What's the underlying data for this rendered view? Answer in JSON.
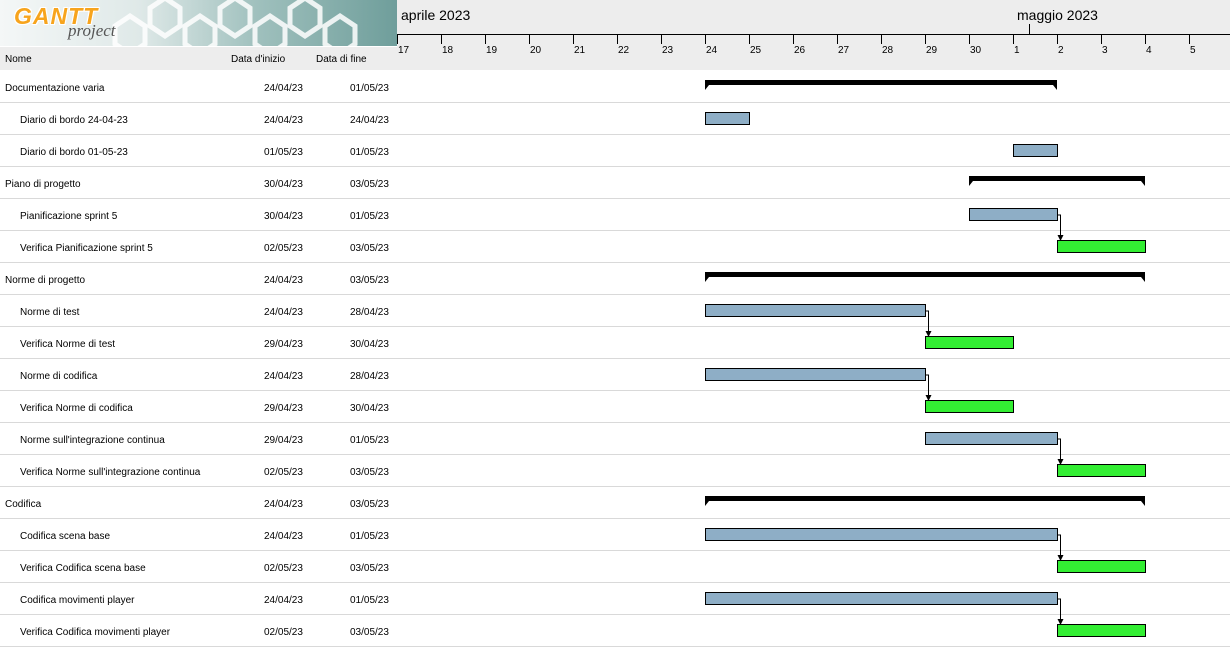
{
  "app": {
    "logo_text_main": "GANTT",
    "logo_text_sub": "project"
  },
  "table": {
    "col_name": "Nome",
    "col_start": "Data d'inizio",
    "col_end": "Data di fine",
    "rows": [
      {
        "name": "Documentazione varia",
        "start": "24/04/23",
        "end": "01/05/23",
        "level": 0
      },
      {
        "name": "Diario di bordo 24-04-23",
        "start": "24/04/23",
        "end": "24/04/23",
        "level": 1
      },
      {
        "name": "Diario di bordo 01-05-23",
        "start": "01/05/23",
        "end": "01/05/23",
        "level": 1
      },
      {
        "name": "Piano di progetto",
        "start": "30/04/23",
        "end": "03/05/23",
        "level": 0
      },
      {
        "name": "Pianificazione sprint 5",
        "start": "30/04/23",
        "end": "01/05/23",
        "level": 1
      },
      {
        "name": "Verifica Pianificazione sprint 5",
        "start": "02/05/23",
        "end": "03/05/23",
        "level": 1
      },
      {
        "name": "Norme di progetto",
        "start": "24/04/23",
        "end": "03/05/23",
        "level": 0
      },
      {
        "name": "Norme di test",
        "start": "24/04/23",
        "end": "28/04/23",
        "level": 1
      },
      {
        "name": "Verifica Norme di test",
        "start": "29/04/23",
        "end": "30/04/23",
        "level": 1
      },
      {
        "name": "Norme di codifica",
        "start": "24/04/23",
        "end": "28/04/23",
        "level": 1
      },
      {
        "name": "Verifica Norme di codifica",
        "start": "29/04/23",
        "end": "30/04/23",
        "level": 1
      },
      {
        "name": "Norme sull'integrazione continua",
        "start": "29/04/23",
        "end": "01/05/23",
        "level": 1
      },
      {
        "name": "Verifica Norme sull'integrazione continua",
        "start": "02/05/23",
        "end": "03/05/23",
        "level": 1
      },
      {
        "name": "Codifica",
        "start": "24/04/23",
        "end": "03/05/23",
        "level": 0
      },
      {
        "name": "Codifica scena base",
        "start": "24/04/23",
        "end": "01/05/23",
        "level": 1
      },
      {
        "name": "Verifica Codifica scena base",
        "start": "02/05/23",
        "end": "03/05/23",
        "level": 1
      },
      {
        "name": "Codifica movimenti player",
        "start": "24/04/23",
        "end": "01/05/23",
        "level": 1
      },
      {
        "name": "Verifica Codifica movimenti player",
        "start": "02/05/23",
        "end": "03/05/23",
        "level": 1
      }
    ]
  },
  "timeline": {
    "months": [
      {
        "label": "aprile 2023",
        "first_day_index": 0
      },
      {
        "label": "maggio 2023",
        "first_day_index": 14
      }
    ],
    "days": [
      "17",
      "18",
      "19",
      "20",
      "21",
      "22",
      "23",
      "24",
      "25",
      "26",
      "27",
      "28",
      "29",
      "30",
      "1",
      "2",
      "3",
      "4",
      "5"
    ]
  },
  "chart_data": {
    "type": "gantt",
    "tasks": [
      {
        "name": "Documentazione varia",
        "start": "2023-04-24",
        "end": "2023-05-01",
        "kind": "summary"
      },
      {
        "name": "Diario di bordo 24-04-23",
        "start": "2023-04-24",
        "end": "2023-04-24",
        "kind": "task"
      },
      {
        "name": "Diario di bordo 01-05-23",
        "start": "2023-05-01",
        "end": "2023-05-01",
        "kind": "task"
      },
      {
        "name": "Piano di progetto",
        "start": "2023-04-30",
        "end": "2023-05-03",
        "kind": "summary"
      },
      {
        "name": "Pianificazione sprint 5",
        "start": "2023-04-30",
        "end": "2023-05-01",
        "kind": "task"
      },
      {
        "name": "Verifica Pianificazione sprint 5",
        "start": "2023-05-02",
        "end": "2023-05-03",
        "kind": "verify"
      },
      {
        "name": "Norme di progetto",
        "start": "2023-04-24",
        "end": "2023-05-03",
        "kind": "summary"
      },
      {
        "name": "Norme di test",
        "start": "2023-04-24",
        "end": "2023-04-28",
        "kind": "task"
      },
      {
        "name": "Verifica Norme di test",
        "start": "2023-04-29",
        "end": "2023-04-30",
        "kind": "verify"
      },
      {
        "name": "Norme di codifica",
        "start": "2023-04-24",
        "end": "2023-04-28",
        "kind": "task"
      },
      {
        "name": "Verifica Norme di codifica",
        "start": "2023-04-29",
        "end": "2023-04-30",
        "kind": "verify"
      },
      {
        "name": "Norme sull'integrazione continua",
        "start": "2023-04-29",
        "end": "2023-05-01",
        "kind": "task"
      },
      {
        "name": "Verifica Norme sull'integrazione continua",
        "start": "2023-05-02",
        "end": "2023-05-03",
        "kind": "verify"
      },
      {
        "name": "Codifica",
        "start": "2023-04-24",
        "end": "2023-05-03",
        "kind": "summary"
      },
      {
        "name": "Codifica scena base",
        "start": "2023-04-24",
        "end": "2023-05-01",
        "kind": "task"
      },
      {
        "name": "Verifica Codifica scena base",
        "start": "2023-05-02",
        "end": "2023-05-03",
        "kind": "verify"
      },
      {
        "name": "Codifica movimenti player",
        "start": "2023-04-24",
        "end": "2023-05-01",
        "kind": "task"
      },
      {
        "name": "Verifica Codifica movimenti player",
        "start": "2023-05-02",
        "end": "2023-05-03",
        "kind": "verify"
      }
    ],
    "dependencies": [
      [
        4,
        5
      ],
      [
        7,
        8
      ],
      [
        9,
        10
      ],
      [
        11,
        12
      ],
      [
        14,
        15
      ],
      [
        16,
        17
      ]
    ],
    "colors": {
      "task": "#8eaec6",
      "verify": "#33ee33",
      "summary": "#000000"
    }
  }
}
